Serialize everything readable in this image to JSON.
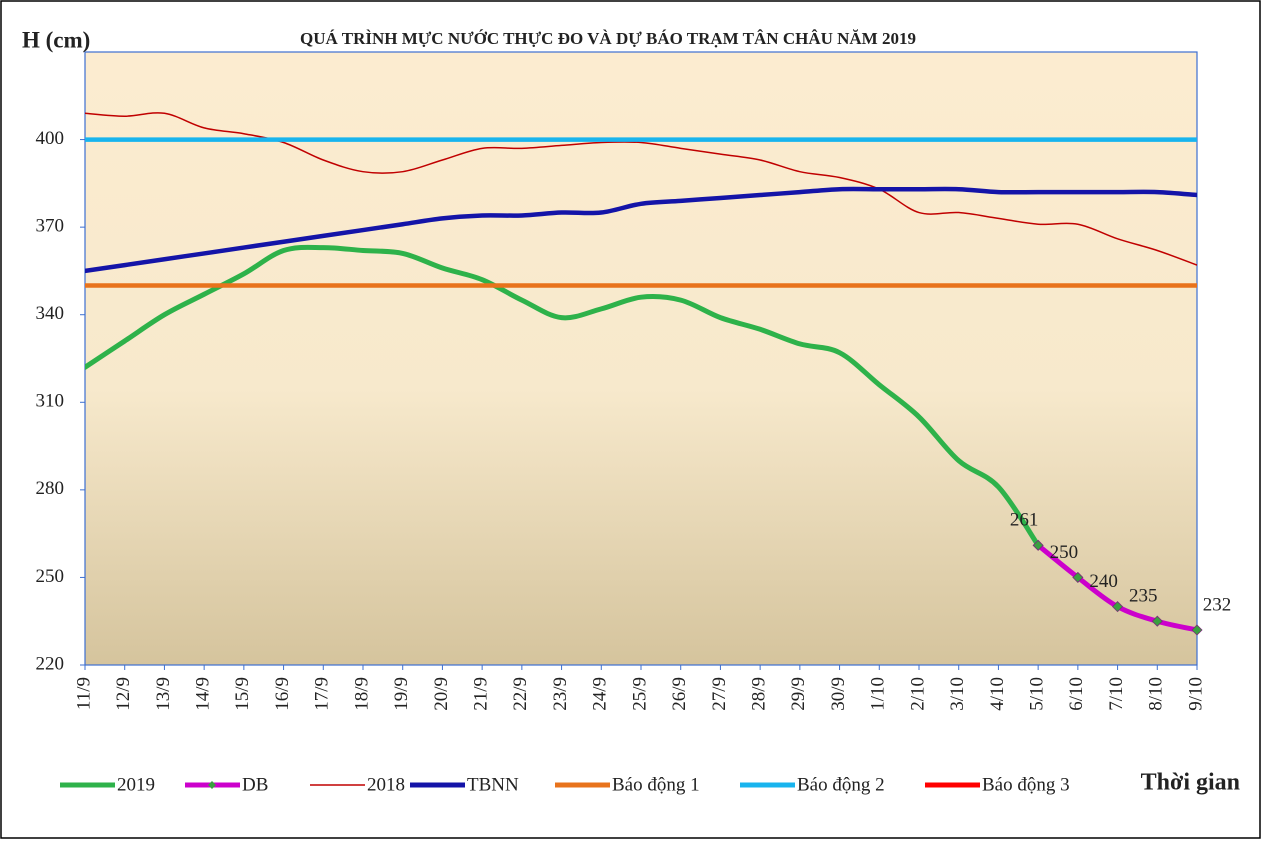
{
  "chart_data": {
    "type": "line",
    "title": "QUÁ TRÌNH MỰC NƯỚC THỰC ĐO VÀ DỰ BÁO TRẠM TÂN CHÂU NĂM 2019",
    "y_label": "H (cm)",
    "x_label": "Thời gian",
    "categories": [
      "11/9",
      "12/9",
      "13/9",
      "14/9",
      "15/9",
      "16/9",
      "17/9",
      "18/9",
      "19/9",
      "20/9",
      "21/9",
      "22/9",
      "23/9",
      "24/9",
      "25/9",
      "26/9",
      "27/9",
      "28/9",
      "29/9",
      "30/9",
      "1/10",
      "2/10",
      "3/10",
      "4/10",
      "5/10",
      "6/10",
      "7/10",
      "8/10",
      "9/10"
    ],
    "series": [
      {
        "name": "2019",
        "color": "#2eb24a",
        "values": [
          322,
          331,
          340,
          347,
          354,
          362,
          363,
          362,
          361,
          356,
          352,
          345,
          339,
          342,
          346,
          345,
          339,
          335,
          330,
          327,
          316,
          305,
          290,
          281,
          261,
          null,
          null,
          null,
          null
        ]
      },
      {
        "name": "DB",
        "color": "#cc00cc",
        "marker_color": "#3aa040",
        "values": [
          null,
          null,
          null,
          null,
          null,
          null,
          null,
          null,
          null,
          null,
          null,
          null,
          null,
          null,
          null,
          null,
          null,
          null,
          null,
          null,
          null,
          null,
          null,
          null,
          261,
          250,
          240,
          235,
          232
        ]
      },
      {
        "name": "2018",
        "color": "#c00000",
        "values": [
          409,
          408,
          409,
          404,
          402,
          399,
          393,
          389,
          389,
          393,
          397,
          397,
          398,
          399,
          399,
          397,
          395,
          393,
          389,
          387,
          383,
          375,
          375,
          373,
          371,
          371,
          366,
          362,
          357
        ]
      },
      {
        "name": "TBNN",
        "color": "#1414a8",
        "values": [
          355,
          357,
          359,
          361,
          363,
          365,
          367,
          369,
          371,
          373,
          374,
          374,
          375,
          375,
          378,
          379,
          380,
          381,
          382,
          383,
          383,
          383,
          383,
          382,
          382,
          382,
          382,
          382,
          381
        ]
      },
      {
        "name": "Báo động 1",
        "color": "#e8731c",
        "values": [
          350,
          350,
          350,
          350,
          350,
          350,
          350,
          350,
          350,
          350,
          350,
          350,
          350,
          350,
          350,
          350,
          350,
          350,
          350,
          350,
          350,
          350,
          350,
          350,
          350,
          350,
          350,
          350,
          350
        ]
      },
      {
        "name": "Báo động 2",
        "color": "#18b4ee",
        "values": [
          400,
          400,
          400,
          400,
          400,
          400,
          400,
          400,
          400,
          400,
          400,
          400,
          400,
          400,
          400,
          400,
          400,
          400,
          400,
          400,
          400,
          400,
          400,
          400,
          400,
          400,
          400,
          400,
          400
        ]
      },
      {
        "name": "Báo động 3",
        "color": "#ff0000",
        "values": [
          null,
          null,
          null,
          null,
          null,
          null,
          null,
          null,
          null,
          null,
          null,
          null,
          null,
          null,
          null,
          null,
          null,
          null,
          null,
          null,
          null,
          null,
          null,
          null,
          null,
          null,
          null,
          null,
          null
        ]
      }
    ],
    "ylim": [
      220,
      430
    ],
    "yticks": [
      220,
      250,
      280,
      310,
      340,
      370,
      400
    ]
  }
}
